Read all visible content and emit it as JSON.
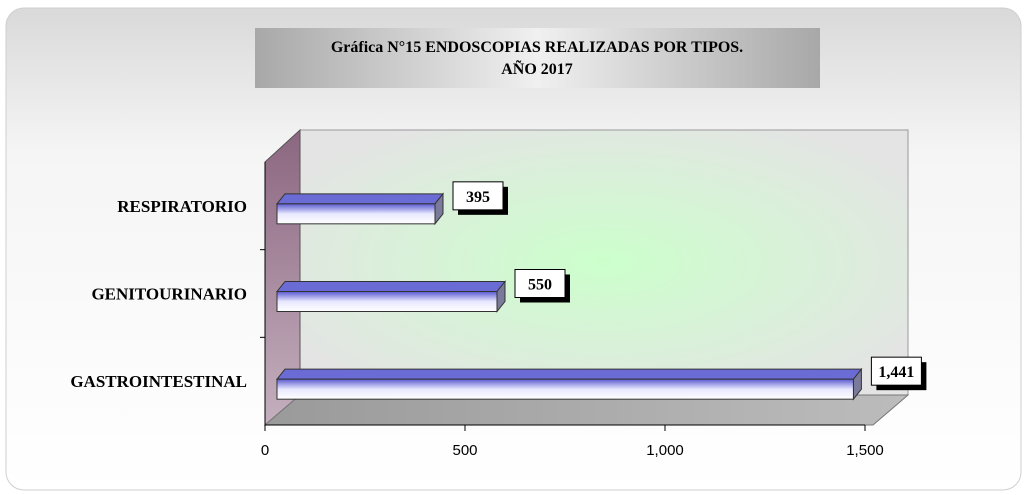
{
  "chart_data": {
    "type": "bar",
    "orientation": "horizontal",
    "title": [
      "Gráfica N°15 ENDOSCOPIAS REALIZADAS POR TIPOS.",
      "AÑO 2017"
    ],
    "categories": [
      "RESPIRATORIO",
      "GENITOURINARIO",
      "GASTROINTESTINAL"
    ],
    "values": [
      395,
      550,
      1441
    ],
    "value_labels": [
      "395",
      "550",
      "1,441"
    ],
    "color": "#6b6bd6",
    "xlim": [
      0,
      1500
    ],
    "xticks": [
      0,
      500,
      {
        "value": 1000,
        "label": "1,000"
      },
      {
        "value": 1500,
        "label": "1,500"
      }
    ]
  }
}
